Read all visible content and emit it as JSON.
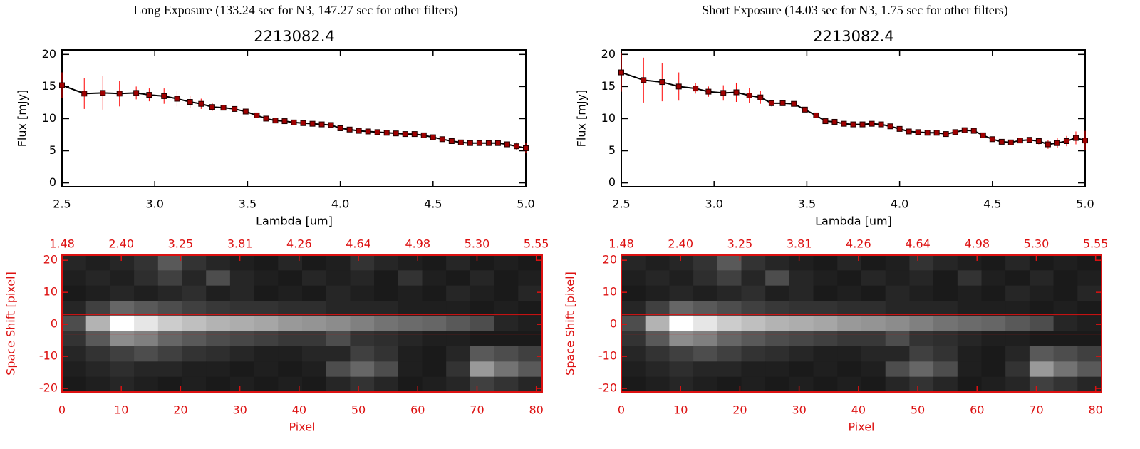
{
  "chart_data": [
    {
      "type": "line",
      "suptitle": "Long Exposure (133.24 sec for N3, 147.27 sec for other filters)",
      "title": "2213082.4",
      "xlabel": "Lambda [um]",
      "ylabel": "Flux [mJy]",
      "xlim": [
        2.5,
        5.0
      ],
      "ylim": [
        -0.6,
        20.7
      ],
      "xticks": [
        2.5,
        {
          "value": 3,
          "label": "3.0"
        },
        3.5,
        {
          "value": 4,
          "label": "4.0"
        },
        4.5,
        {
          "value": 5,
          "label": "5.0"
        }
      ],
      "yticks": [
        0,
        5,
        10,
        15,
        20
      ],
      "line_color": "#000000",
      "marker_color": "#a00000",
      "error_color": "#ff0000",
      "x": [
        2.5,
        2.62,
        2.72,
        2.81,
        2.9,
        2.97,
        3.05,
        3.12,
        3.19,
        3.25,
        3.31,
        3.37,
        3.43,
        3.49,
        3.55,
        3.6,
        3.65,
        3.7,
        3.75,
        3.8,
        3.85,
        3.9,
        3.95,
        4.0,
        4.05,
        4.1,
        4.15,
        4.2,
        4.25,
        4.3,
        4.35,
        4.4,
        4.45,
        4.5,
        4.55,
        4.6,
        4.65,
        4.7,
        4.75,
        4.8,
        4.85,
        4.9,
        4.95,
        5.0
      ],
      "values": [
        15.2,
        13.9,
        14.0,
        13.9,
        14.0,
        13.7,
        13.5,
        13.1,
        12.6,
        12.3,
        11.8,
        11.7,
        11.5,
        11.1,
        10.5,
        10.0,
        9.7,
        9.6,
        9.4,
        9.3,
        9.2,
        9.1,
        9.0,
        8.5,
        8.3,
        8.1,
        8.0,
        7.9,
        7.8,
        7.7,
        7.6,
        7.6,
        7.4,
        7.1,
        6.8,
        6.5,
        6.3,
        6.2,
        6.2,
        6.2,
        6.2,
        6.0,
        5.7,
        5.4
      ],
      "errors": [
        2.0,
        2.4,
        2.6,
        2.0,
        1.0,
        1.0,
        1.2,
        1.2,
        1.0,
        0.8,
        0.6,
        0.4,
        0.3,
        0.3,
        0.3,
        0.3,
        0.3,
        0.3,
        0.3,
        0.3,
        0.3,
        0.3,
        0.3,
        0.3,
        0.3,
        0.3,
        0.3,
        0.3,
        0.3,
        0.3,
        0.3,
        0.3,
        0.3,
        0.3,
        0.3,
        0.3,
        0.3,
        0.3,
        0.3,
        0.3,
        0.3,
        0.4,
        0.6,
        0.8
      ]
    },
    {
      "type": "heatmap",
      "xlabel": "Pixel",
      "ylabel": "Space Shift [pixel]",
      "color": "#dd1111",
      "xlim": [
        0,
        81
      ],
      "ylim": [
        -21.1,
        21.6
      ],
      "xticks": [
        0,
        10,
        20,
        30,
        40,
        50,
        60,
        70,
        80
      ],
      "yticks": [
        -20,
        -10,
        0,
        10,
        20
      ],
      "x2ticks": [
        {
          "value": 0,
          "label": "1.48"
        },
        {
          "value": 10,
          "label": "2.40"
        },
        {
          "value": 20,
          "label": "3.25"
        },
        {
          "value": 30,
          "label": "3.81"
        },
        {
          "value": 40,
          "label": "4.26"
        },
        {
          "value": 50,
          "label": "4.64"
        },
        {
          "value": 60,
          "label": "4.98"
        },
        {
          "value": 70,
          "label": "5.30"
        },
        {
          "value": 80,
          "label": "5.55"
        }
      ],
      "aperture": [
        -3,
        3
      ],
      "z": [
        [
          0.15,
          0.12,
          0.15,
          0.2,
          0.35,
          0.2,
          0.15,
          0.12,
          0.1,
          0.15,
          0.1,
          0.12,
          0.2,
          0.15,
          0.12,
          0.1,
          0.15,
          0.1,
          0.12,
          0.1
        ],
        [
          0.12,
          0.15,
          0.12,
          0.18,
          0.25,
          0.15,
          0.3,
          0.15,
          0.12,
          0.1,
          0.15,
          0.12,
          0.15,
          0.1,
          0.2,
          0.12,
          0.1,
          0.15,
          0.1,
          0.12
        ],
        [
          0.1,
          0.12,
          0.15,
          0.12,
          0.15,
          0.18,
          0.12,
          0.15,
          0.1,
          0.12,
          0.1,
          0.15,
          0.12,
          0.1,
          0.12,
          0.1,
          0.15,
          0.12,
          0.1,
          0.15
        ],
        [
          0.15,
          0.25,
          0.4,
          0.35,
          0.3,
          0.25,
          0.22,
          0.2,
          0.2,
          0.18,
          0.18,
          0.15,
          0.15,
          0.15,
          0.12,
          0.12,
          0.12,
          0.1,
          0.12,
          0.1
        ],
        [
          0.3,
          0.7,
          1.0,
          0.9,
          0.8,
          0.75,
          0.7,
          0.68,
          0.65,
          0.6,
          0.58,
          0.55,
          0.5,
          0.45,
          0.42,
          0.4,
          0.35,
          0.3,
          0.15,
          0.12
        ],
        [
          0.2,
          0.35,
          0.55,
          0.5,
          0.4,
          0.35,
          0.3,
          0.28,
          0.25,
          0.22,
          0.22,
          0.3,
          0.2,
          0.18,
          0.15,
          0.12,
          0.12,
          0.1,
          0.1,
          0.1
        ],
        [
          0.15,
          0.2,
          0.25,
          0.3,
          0.25,
          0.2,
          0.18,
          0.15,
          0.12,
          0.12,
          0.15,
          0.15,
          0.25,
          0.2,
          0.12,
          0.1,
          0.15,
          0.35,
          0.3,
          0.25
        ],
        [
          0.12,
          0.15,
          0.18,
          0.15,
          0.15,
          0.12,
          0.12,
          0.1,
          0.12,
          0.1,
          0.12,
          0.3,
          0.4,
          0.3,
          0.12,
          0.1,
          0.2,
          0.6,
          0.45,
          0.35
        ],
        [
          0.1,
          0.12,
          0.15,
          0.12,
          0.1,
          0.12,
          0.1,
          0.12,
          0.1,
          0.12,
          0.1,
          0.15,
          0.2,
          0.15,
          0.1,
          0.12,
          0.15,
          0.25,
          0.2,
          0.15
        ]
      ]
    },
    {
      "type": "line",
      "suptitle": "Short Exposure (14.03 sec for N3, 1.75 sec for other filters)",
      "title": "2213082.4",
      "xlabel": "Lambda [um]",
      "ylabel": "Flux [mJy]",
      "xlim": [
        2.5,
        5.0
      ],
      "ylim": [
        -0.6,
        20.7
      ],
      "xticks": [
        2.5,
        {
          "value": 3,
          "label": "3.0"
        },
        3.5,
        {
          "value": 4,
          "label": "4.0"
        },
        4.5,
        {
          "value": 5,
          "label": "5.0"
        }
      ],
      "yticks": [
        0,
        5,
        10,
        15,
        20
      ],
      "line_color": "#000000",
      "marker_color": "#a00000",
      "error_color": "#ff0000",
      "x": [
        2.5,
        2.62,
        2.72,
        2.81,
        2.9,
        2.97,
        3.05,
        3.12,
        3.19,
        3.25,
        3.31,
        3.37,
        3.43,
        3.49,
        3.55,
        3.6,
        3.65,
        3.7,
        3.75,
        3.8,
        3.85,
        3.9,
        3.95,
        4.0,
        4.05,
        4.1,
        4.15,
        4.2,
        4.25,
        4.3,
        4.35,
        4.4,
        4.45,
        4.5,
        4.55,
        4.6,
        4.65,
        4.7,
        4.75,
        4.8,
        4.85,
        4.9,
        4.95,
        5.0
      ],
      "values": [
        17.2,
        16.0,
        15.7,
        15.0,
        14.7,
        14.2,
        14.0,
        14.1,
        13.6,
        13.3,
        12.4,
        12.4,
        12.3,
        11.4,
        10.5,
        9.6,
        9.5,
        9.2,
        9.1,
        9.1,
        9.2,
        9.1,
        8.8,
        8.4,
        8.0,
        7.9,
        7.8,
        7.8,
        7.6,
        7.9,
        8.2,
        8.1,
        7.4,
        6.8,
        6.4,
        6.3,
        6.6,
        6.7,
        6.5,
        6.0,
        6.2,
        6.5,
        7.0,
        6.6
      ],
      "errors": [
        3.0,
        3.5,
        3.0,
        2.2,
        0.8,
        0.8,
        1.2,
        1.5,
        1.2,
        1.0,
        0.5,
        0.4,
        0.4,
        0.3,
        0.3,
        0.3,
        0.3,
        0.3,
        0.3,
        0.3,
        0.3,
        0.3,
        0.3,
        0.3,
        0.3,
        0.3,
        0.3,
        0.3,
        0.3,
        0.3,
        0.3,
        0.3,
        0.3,
        0.3,
        0.3,
        0.3,
        0.3,
        0.4,
        0.5,
        0.7,
        0.8,
        0.8,
        1.0,
        1.5
      ]
    },
    {
      "type": "heatmap",
      "xlabel": "Pixel",
      "ylabel": "Space Shift [pixel]",
      "color": "#dd1111",
      "xlim": [
        0,
        81
      ],
      "ylim": [
        -21.1,
        21.6
      ],
      "xticks": [
        0,
        10,
        20,
        30,
        40,
        50,
        60,
        70,
        80
      ],
      "yticks": [
        -20,
        -10,
        0,
        10,
        20
      ],
      "x2ticks": [
        {
          "value": 0,
          "label": "1.48"
        },
        {
          "value": 10,
          "label": "2.40"
        },
        {
          "value": 20,
          "label": "3.25"
        },
        {
          "value": 30,
          "label": "3.81"
        },
        {
          "value": 40,
          "label": "4.26"
        },
        {
          "value": 50,
          "label": "4.64"
        },
        {
          "value": 60,
          "label": "4.98"
        },
        {
          "value": 70,
          "label": "5.30"
        },
        {
          "value": 80,
          "label": "5.55"
        }
      ],
      "aperture": [
        -3,
        3
      ],
      "z": [
        [
          0.15,
          0.12,
          0.15,
          0.2,
          0.35,
          0.2,
          0.15,
          0.12,
          0.1,
          0.15,
          0.1,
          0.12,
          0.2,
          0.15,
          0.12,
          0.1,
          0.15,
          0.1,
          0.12,
          0.1
        ],
        [
          0.12,
          0.15,
          0.12,
          0.18,
          0.25,
          0.15,
          0.3,
          0.15,
          0.12,
          0.1,
          0.15,
          0.12,
          0.15,
          0.1,
          0.2,
          0.12,
          0.1,
          0.15,
          0.1,
          0.12
        ],
        [
          0.1,
          0.12,
          0.15,
          0.12,
          0.15,
          0.18,
          0.12,
          0.15,
          0.1,
          0.12,
          0.1,
          0.15,
          0.12,
          0.1,
          0.12,
          0.1,
          0.15,
          0.12,
          0.1,
          0.15
        ],
        [
          0.15,
          0.25,
          0.4,
          0.35,
          0.3,
          0.25,
          0.22,
          0.2,
          0.2,
          0.18,
          0.18,
          0.15,
          0.15,
          0.15,
          0.12,
          0.12,
          0.12,
          0.1,
          0.12,
          0.1
        ],
        [
          0.3,
          0.7,
          1.0,
          0.9,
          0.8,
          0.75,
          0.7,
          0.68,
          0.65,
          0.6,
          0.58,
          0.55,
          0.5,
          0.45,
          0.42,
          0.4,
          0.35,
          0.3,
          0.15,
          0.12
        ],
        [
          0.2,
          0.35,
          0.55,
          0.5,
          0.4,
          0.35,
          0.3,
          0.28,
          0.25,
          0.22,
          0.22,
          0.3,
          0.2,
          0.18,
          0.15,
          0.12,
          0.12,
          0.1,
          0.1,
          0.1
        ],
        [
          0.15,
          0.2,
          0.25,
          0.3,
          0.25,
          0.2,
          0.18,
          0.15,
          0.12,
          0.12,
          0.15,
          0.15,
          0.25,
          0.2,
          0.12,
          0.1,
          0.15,
          0.35,
          0.3,
          0.25
        ],
        [
          0.12,
          0.15,
          0.18,
          0.15,
          0.15,
          0.12,
          0.12,
          0.1,
          0.12,
          0.1,
          0.12,
          0.3,
          0.4,
          0.3,
          0.12,
          0.1,
          0.2,
          0.6,
          0.45,
          0.35
        ],
        [
          0.1,
          0.12,
          0.15,
          0.12,
          0.1,
          0.12,
          0.1,
          0.12,
          0.1,
          0.12,
          0.1,
          0.15,
          0.2,
          0.15,
          0.1,
          0.12,
          0.15,
          0.25,
          0.2,
          0.15
        ]
      ]
    }
  ]
}
